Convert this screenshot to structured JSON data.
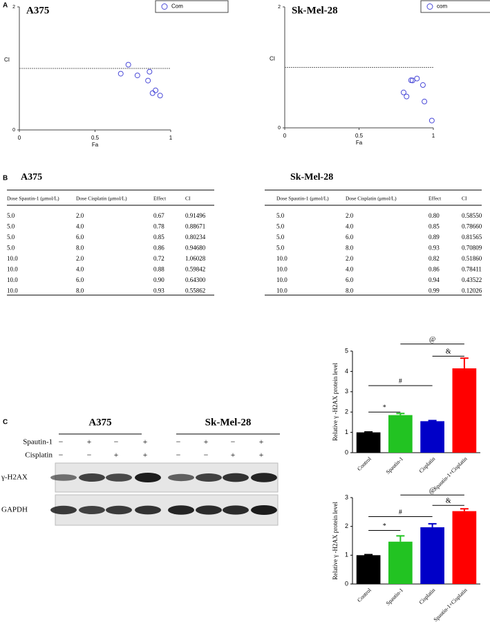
{
  "panels": [
    "A",
    "B",
    "C"
  ],
  "chart_data": [
    {
      "type": "scatter",
      "title": "A375",
      "legend": "Com",
      "x_label": "Fa",
      "y_label": "CI",
      "color": "#4a4ad8",
      "x": [
        0.67,
        0.78,
        0.85,
        0.86,
        0.72,
        0.88,
        0.9,
        0.93
      ],
      "values": [
        0.91496,
        0.88671,
        0.80234,
        0.9468,
        1.06028,
        0.59842,
        0.643,
        0.55862
      ],
      "xlim": [
        0,
        1
      ],
      "xticks": [
        0,
        0.5,
        1
      ],
      "ylim": [
        0,
        2
      ],
      "yticks": [
        0,
        2
      ],
      "reference_line": 1
    },
    {
      "type": "scatter",
      "title": "Sk-Mel-28",
      "legend": "com",
      "x_label": "Fa",
      "y_label": "CI",
      "color": "#4a4ad8",
      "x": [
        0.8,
        0.85,
        0.89,
        0.93,
        0.82,
        0.86,
        0.94,
        0.99
      ],
      "values": [
        0.5855,
        0.7866,
        0.81565,
        0.70809,
        0.5186,
        0.78411,
        0.43522,
        0.12026
      ],
      "xlim": [
        0,
        1
      ],
      "xticks": [
        0,
        0.5,
        1
      ],
      "ylim": [
        0,
        2
      ],
      "yticks": [
        0,
        2
      ],
      "reference_line": 1
    },
    {
      "type": "bar",
      "y_label": "Relative γ -H2AX protein level",
      "categories": [
        "Control",
        "Spautin-1",
        "Cisplatin",
        "Spautin-1+Cisplatin"
      ],
      "colors": [
        "#000000",
        "#22c322",
        "#0000c8",
        "#ff0000"
      ],
      "values": [
        1.0,
        1.85,
        1.55,
        4.15
      ],
      "errors": [
        0.02,
        0.08,
        0.03,
        0.5
      ],
      "ylim": [
        0,
        5
      ],
      "yticks": [
        0,
        1,
        2,
        3,
        4,
        5
      ],
      "annotations": [
        "*",
        "#",
        "&",
        "@"
      ]
    },
    {
      "type": "bar",
      "y_label": "Relative γ -H2AX protein level",
      "categories": [
        "Control",
        "Spautin-1",
        "Cisplatin",
        "Spautin-1+Cisplatin"
      ],
      "colors": [
        "#000000",
        "#22c322",
        "#0000c8",
        "#ff0000"
      ],
      "values": [
        1.0,
        1.47,
        1.97,
        2.53
      ],
      "errors": [
        0.02,
        0.2,
        0.12,
        0.08
      ],
      "ylim": [
        0,
        3
      ],
      "yticks": [
        0,
        1,
        2,
        3
      ],
      "annotations": [
        "*",
        "#",
        "&",
        "@"
      ]
    }
  ],
  "tables": [
    {
      "title": "A375",
      "header": [
        "Dose Spautin-1 (μmol/L)",
        "Dose Cisplatin (μmol/L)",
        "Effect",
        "CI"
      ],
      "rows": [
        [
          "5.0",
          "2.0",
          "0.67",
          "0.91496"
        ],
        [
          "5.0",
          "4.0",
          "0.78",
          "0.88671"
        ],
        [
          "5.0",
          "6.0",
          "0.85",
          "0.80234"
        ],
        [
          "5.0",
          "8.0",
          "0.86",
          "0.94680"
        ],
        [
          "10.0",
          "2.0",
          "0.72",
          "1.06028"
        ],
        [
          "10.0",
          "4.0",
          "0.88",
          "0.59842"
        ],
        [
          "10.0",
          "6.0",
          "0.90",
          "0.64300"
        ],
        [
          "10.0",
          "8.0",
          "0.93",
          "0.55862"
        ]
      ]
    },
    {
      "title": "Sk-Mel-28",
      "header": [
        "Dose Spautin-1 (μmol/L)",
        "Dose Cisplatin (μmol/L)",
        "Effect",
        "CI"
      ],
      "rows": [
        [
          "5.0",
          "2.0",
          "0.80",
          "0.58550"
        ],
        [
          "5.0",
          "4.0",
          "0.85",
          "0.78660"
        ],
        [
          "5.0",
          "6.0",
          "0.89",
          "0.81565"
        ],
        [
          "5.0",
          "8.0",
          "0.93",
          "0.70809"
        ],
        [
          "10.0",
          "2.0",
          "0.82",
          "0.51860"
        ],
        [
          "10.0",
          "4.0",
          "0.86",
          "0.78411"
        ],
        [
          "10.0",
          "6.0",
          "0.94",
          "0.43522"
        ],
        [
          "10.0",
          "8.0",
          "0.99",
          "0.12026"
        ]
      ]
    }
  ],
  "blot": {
    "cell_lines": [
      "A375",
      "Sk-Mel-28"
    ],
    "treatments": [
      {
        "name": "Spautin-1",
        "signs": [
          "−",
          "+",
          "−",
          "+",
          "−",
          "+",
          "−",
          "+"
        ]
      },
      {
        "name": "Cisplatin",
        "signs": [
          "−",
          "−",
          "+",
          "+",
          "−",
          "−",
          "+",
          "+"
        ]
      }
    ],
    "proteins": [
      "γ-H2AX",
      "GAPDH"
    ]
  }
}
